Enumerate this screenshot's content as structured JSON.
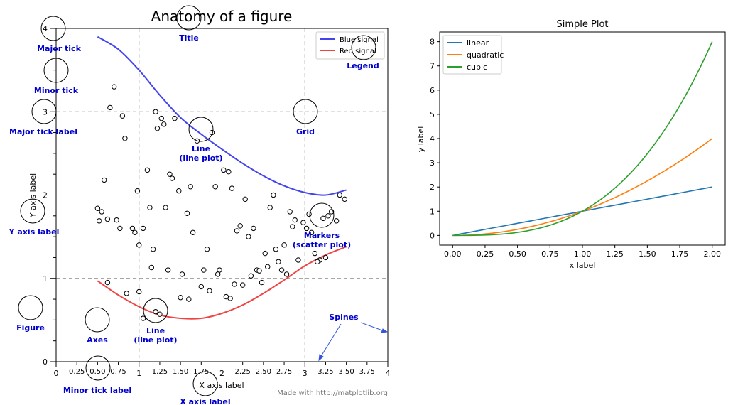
{
  "left_figure": {
    "title": "Anatomy of a figure",
    "xlabel": "X axis label",
    "ylabel": "Y axis label",
    "footer": "Made with http://matplotlib.org",
    "colors": {
      "blue": "#4444ee",
      "red": "#ee4444"
    },
    "annotations": {
      "major_tick": "Major tick",
      "minor_tick": "Minor tick",
      "major_tick_label": "Major tick label",
      "title": "Title",
      "legend": "Legend",
      "grid": "Grid",
      "line1": "Line",
      "line1_sub": "(line plot)",
      "y_axis_label": "Y axis label",
      "markers": "Markers",
      "markers_sub": "(scatter plot)",
      "figure": "Figure",
      "axes": "Axes",
      "line2": "Line",
      "line2_sub": "(line plot)",
      "spines": "Spines",
      "minor_tick_label": "Minor tick label",
      "x_axis_label": "X axis label"
    }
  },
  "chart_data": [
    {
      "type": "line",
      "title": "Anatomy of a figure",
      "xlabel": "X axis label",
      "ylabel": "Y axis label",
      "xlim": [
        0,
        4
      ],
      "ylim": [
        0,
        4
      ],
      "xticks_major": [
        "0",
        "1",
        "2",
        "3",
        "4"
      ],
      "xticks_minor": [
        "0.25",
        "0.50",
        "0.75",
        "1.25",
        "1.50",
        "1.75",
        "2.25",
        "2.50",
        "2.75",
        "3.25",
        "3.50",
        "3.75"
      ],
      "yticks_major": [
        "0",
        "1",
        "2",
        "3",
        "4"
      ],
      "grid": true,
      "legend": "top-right",
      "series": [
        {
          "name": "Blue signal",
          "color": "#4444ee",
          "x": [
            0.5,
            0.75,
            1.0,
            1.25,
            1.5,
            1.75,
            2.0,
            2.25,
            2.5,
            2.75,
            3.0,
            3.25,
            3.5
          ],
          "y": [
            3.9,
            3.75,
            3.5,
            3.2,
            2.93,
            2.73,
            2.55,
            2.38,
            2.23,
            2.11,
            2.03,
            2.0,
            2.06
          ]
        },
        {
          "name": "Red signal",
          "color": "#ee4444",
          "x": [
            0.5,
            0.75,
            1.0,
            1.25,
            1.5,
            1.75,
            2.0,
            2.25,
            2.5,
            2.75,
            3.0,
            3.25,
            3.5
          ],
          "y": [
            0.97,
            0.8,
            0.66,
            0.56,
            0.52,
            0.52,
            0.58,
            0.68,
            0.82,
            0.98,
            1.15,
            1.28,
            1.38
          ]
        },
        {
          "name": "Markers",
          "type": "scatter",
          "x": [
            0.7,
            0.65,
            0.8,
            0.83,
            0.58,
            0.5,
            0.55,
            0.62,
            0.52,
            0.73,
            0.77,
            0.92,
            0.95,
            0.98,
            1.0,
            1.05,
            1.1,
            1.13,
            1.17,
            1.2,
            1.22,
            1.27,
            1.3,
            1.32,
            1.37,
            1.4,
            1.43,
            1.48,
            1.52,
            1.58,
            1.62,
            1.65,
            1.7,
            1.78,
            1.82,
            1.88,
            1.92,
            1.97,
            2.02,
            2.08,
            2.12,
            2.18,
            2.22,
            2.28,
            2.32,
            2.38,
            2.42,
            2.48,
            2.52,
            2.58,
            2.62,
            2.68,
            2.72,
            2.78,
            2.82,
            2.88,
            2.92,
            2.98,
            3.02,
            3.08,
            3.12,
            3.18,
            3.22,
            3.28,
            3.32,
            3.38,
            3.42,
            3.48,
            0.62,
            0.85,
            1.0,
            1.05,
            1.15,
            1.2,
            1.25,
            1.35,
            1.5,
            1.6,
            1.75,
            1.85,
            1.95,
            2.05,
            2.1,
            2.15,
            2.25,
            2.35,
            2.45,
            2.55,
            2.65,
            2.75,
            2.85,
            3.05,
            3.15,
            3.25
          ],
          "y": [
            3.3,
            3.05,
            2.95,
            2.68,
            2.18,
            1.84,
            1.8,
            1.71,
            1.69,
            1.7,
            1.6,
            1.6,
            1.55,
            2.05,
            1.4,
            1.6,
            2.3,
            1.85,
            1.35,
            3.0,
            2.8,
            2.92,
            2.85,
            1.85,
            2.25,
            2.2,
            2.92,
            2.05,
            1.05,
            1.78,
            2.1,
            1.55,
            2.65,
            1.1,
            1.35,
            2.75,
            2.1,
            1.1,
            2.3,
            2.28,
            2.08,
            1.57,
            1.63,
            1.95,
            1.5,
            1.6,
            1.1,
            0.95,
            1.3,
            1.85,
            2.0,
            1.2,
            1.1,
            1.05,
            1.8,
            1.7,
            1.22,
            1.67,
            1.6,
            1.55,
            1.3,
            1.22,
            1.72,
            1.75,
            1.8,
            1.69,
            2.0,
            1.95,
            0.95,
            0.82,
            0.84,
            0.52,
            1.13,
            0.6,
            0.57,
            1.1,
            0.77,
            0.75,
            0.9,
            0.85,
            1.05,
            0.78,
            0.76,
            0.93,
            0.92,
            1.03,
            1.09,
            1.14,
            1.35,
            1.4,
            1.62,
            1.77,
            1.2,
            1.25
          ]
        }
      ]
    },
    {
      "type": "line",
      "title": "Simple Plot",
      "xlabel": "x label",
      "ylabel": "y label",
      "xlim": [
        -0.1,
        2.1
      ],
      "ylim": [
        -0.4,
        8.4
      ],
      "xticks": [
        "0.00",
        "0.25",
        "0.50",
        "0.75",
        "1.00",
        "1.25",
        "1.50",
        "1.75",
        "2.00"
      ],
      "yticks": [
        "0",
        "1",
        "2",
        "3",
        "4",
        "5",
        "6",
        "7",
        "8"
      ],
      "grid": false,
      "legend": "top-left",
      "series": [
        {
          "name": "linear",
          "color": "#1f77b4",
          "x": [
            0,
            0.25,
            0.5,
            0.75,
            1.0,
            1.25,
            1.5,
            1.75,
            2.0
          ],
          "y": [
            0,
            0.25,
            0.5,
            0.75,
            1.0,
            1.25,
            1.5,
            1.75,
            2.0
          ]
        },
        {
          "name": "quadratic",
          "color": "#ff7f0e",
          "x": [
            0,
            0.25,
            0.5,
            0.75,
            1.0,
            1.25,
            1.5,
            1.75,
            2.0
          ],
          "y": [
            0,
            0.0625,
            0.25,
            0.5625,
            1.0,
            1.5625,
            2.25,
            3.0625,
            4.0
          ]
        },
        {
          "name": "cubic",
          "color": "#2ca02c",
          "x": [
            0,
            0.25,
            0.5,
            0.75,
            1.0,
            1.25,
            1.5,
            1.75,
            2.0
          ],
          "y": [
            0,
            0.015625,
            0.125,
            0.421875,
            1.0,
            1.953125,
            3.375,
            5.359375,
            8.0
          ]
        }
      ]
    }
  ]
}
